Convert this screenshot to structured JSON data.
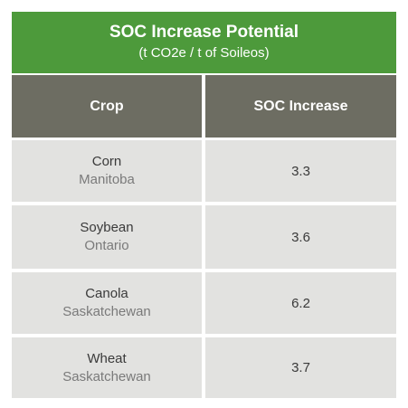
{
  "banner": {
    "title": "SOC Increase Potential",
    "subtitle": "(t CO2e / t of Soileos)"
  },
  "table": {
    "headers": [
      "Crop",
      "SOC Increase"
    ],
    "rows": [
      {
        "crop": "Corn",
        "region": "Manitoba",
        "value": "3.3"
      },
      {
        "crop": "Soybean",
        "region": "Ontario",
        "value": "3.6"
      },
      {
        "crop": "Canola",
        "region": "Saskatchewan",
        "value": "6.2"
      },
      {
        "crop": "Wheat",
        "region": "Saskatchewan",
        "value": "3.7"
      }
    ]
  },
  "colors": {
    "banner": "#4d9a3b",
    "header": "#6d6d62",
    "cell": "#e2e2e0"
  }
}
